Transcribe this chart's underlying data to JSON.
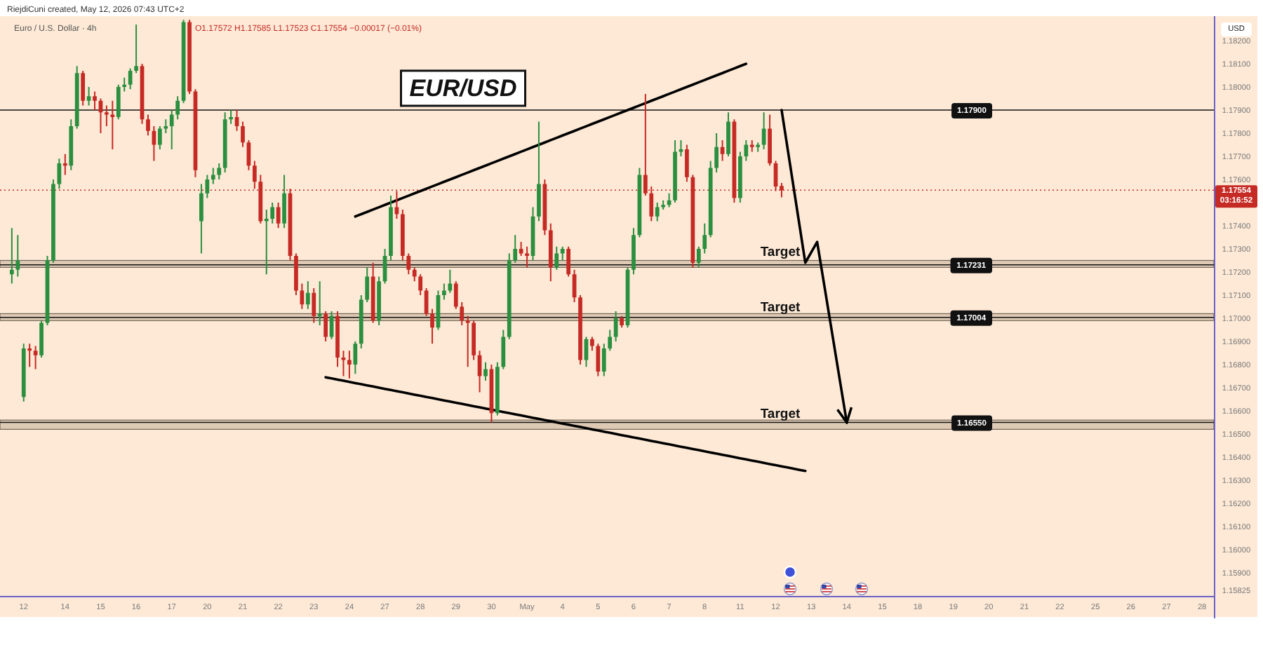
{
  "chart_data": {
    "type": "candlestick",
    "title": "EUR/USD",
    "subtitle": "Euro / U.S. Dollar · 4h",
    "ylabel": "USD",
    "categories": [
      null,
      null,
      "12",
      null,
      null,
      null,
      null,
      null,
      null,
      "14",
      null,
      null,
      null,
      null,
      null,
      "15",
      null,
      null,
      null,
      null,
      null,
      "16",
      null,
      null,
      null,
      null,
      null,
      "17",
      null,
      null,
      null,
      null,
      null,
      "20",
      null,
      null,
      null,
      null,
      null,
      "21",
      null,
      null,
      null,
      null,
      null,
      "22",
      null,
      null,
      null,
      null,
      null,
      "23",
      null,
      null,
      null,
      null,
      null,
      "24",
      null,
      null,
      null,
      null,
      null,
      "27",
      null,
      null,
      null,
      null,
      null,
      "28",
      null,
      null,
      null,
      null,
      null,
      "29",
      null,
      null,
      null,
      null,
      null,
      "30",
      null,
      null,
      null,
      null,
      null,
      "May",
      null,
      null,
      null,
      null,
      null,
      "4",
      null,
      null,
      null,
      null,
      null,
      "5",
      null,
      null,
      null,
      null,
      null,
      "6",
      null,
      null,
      null,
      null,
      null,
      "7",
      null,
      null,
      null,
      null,
      null,
      "8",
      null,
      null,
      null,
      null,
      null,
      "11",
      null,
      null,
      null,
      null,
      null,
      "12",
      null,
      null,
      null,
      null,
      null,
      "13",
      null,
      null,
      null,
      null,
      null,
      "14",
      null,
      null,
      null,
      null,
      null,
      "15",
      null,
      null,
      null,
      null,
      null,
      "18",
      null,
      null,
      null,
      null,
      null,
      "19",
      null,
      null,
      null,
      null,
      null,
      "20",
      null,
      null,
      null,
      null,
      null,
      "21",
      null,
      null,
      null,
      null,
      null,
      "22",
      null,
      null,
      null,
      null,
      null,
      "25",
      null,
      null,
      null,
      null,
      null,
      "26",
      null,
      null,
      null,
      null,
      null,
      "27",
      null,
      null,
      null,
      null,
      null,
      "28"
    ],
    "ohlc": [
      [
        1.1719,
        1.1739,
        1.1715,
        1.1721
      ],
      [
        1.1721,
        1.1736,
        1.1718,
        1.1725
      ],
      [
        1.1666,
        1.1689,
        1.1664,
        1.1687
      ],
      [
        1.1687,
        1.1689,
        1.1679,
        1.1686
      ],
      [
        1.1686,
        1.1688,
        1.1678,
        1.1684
      ],
      [
        1.1684,
        1.1699,
        1.1683,
        1.1698
      ],
      [
        1.1698,
        1.1727,
        1.1697,
        1.1725
      ],
      [
        1.1725,
        1.176,
        1.1724,
        1.1758
      ],
      [
        1.1758,
        1.1769,
        1.1756,
        1.1767
      ],
      [
        1.1767,
        1.1771,
        1.1762,
        1.1766
      ],
      [
        1.1766,
        1.1786,
        1.1764,
        1.1783
      ],
      [
        1.1783,
        1.1809,
        1.1782,
        1.1806
      ],
      [
        1.1806,
        1.1807,
        1.1792,
        1.1794
      ],
      [
        1.1794,
        1.18,
        1.1792,
        1.1796
      ],
      [
        1.1796,
        1.1798,
        1.179,
        1.1794
      ],
      [
        1.1794,
        1.1795,
        1.178,
        1.1789
      ],
      [
        1.1789,
        1.1792,
        1.1783,
        1.1788
      ],
      [
        1.1788,
        1.1794,
        1.1773,
        1.1787
      ],
      [
        1.1787,
        1.1801,
        1.1786,
        1.18
      ],
      [
        1.18,
        1.1804,
        1.1798,
        1.1801
      ],
      [
        1.1801,
        1.1808,
        1.1799,
        1.1807
      ],
      [
        1.1807,
        1.1827,
        1.1806,
        1.1809
      ],
      [
        1.1809,
        1.181,
        1.1784,
        1.1786
      ],
      [
        1.1786,
        1.1788,
        1.1779,
        1.1781
      ],
      [
        1.1781,
        1.1783,
        1.1768,
        1.1775
      ],
      [
        1.1775,
        1.1783,
        1.1773,
        1.1782
      ],
      [
        1.1782,
        1.1786,
        1.178,
        1.1783
      ],
      [
        1.1783,
        1.179,
        1.1773,
        1.1788
      ],
      [
        1.1788,
        1.1796,
        1.1786,
        1.1794
      ],
      [
        1.1794,
        1.1829,
        1.1793,
        1.1828
      ],
      [
        1.1828,
        1.1829,
        1.1797,
        1.1798
      ],
      [
        1.1798,
        1.1799,
        1.1761,
        1.1764
      ],
      [
        1.1742,
        1.1758,
        1.1728,
        1.1754
      ],
      [
        1.1754,
        1.1762,
        1.1752,
        1.176
      ],
      [
        1.176,
        1.1765,
        1.1758,
        1.1762
      ],
      [
        1.1762,
        1.1767,
        1.176,
        1.1765
      ],
      [
        1.1765,
        1.1789,
        1.1763,
        1.1786
      ],
      [
        1.1786,
        1.179,
        1.1784,
        1.1787
      ],
      [
        1.1787,
        1.179,
        1.1781,
        1.1783
      ],
      [
        1.1783,
        1.1785,
        1.1774,
        1.1776
      ],
      [
        1.1776,
        1.1777,
        1.1764,
        1.1766
      ],
      [
        1.1766,
        1.1768,
        1.1756,
        1.1759
      ],
      [
        1.1759,
        1.1762,
        1.1741,
        1.1742
      ],
      [
        1.1742,
        1.1747,
        1.1719,
        1.1743
      ],
      [
        1.1743,
        1.175,
        1.1741,
        1.1748
      ],
      [
        1.1748,
        1.175,
        1.1739,
        1.1741
      ],
      [
        1.1741,
        1.1762,
        1.1739,
        1.1754
      ],
      [
        1.1754,
        1.1756,
        1.1725,
        1.1727
      ],
      [
        1.1727,
        1.1728,
        1.171,
        1.1712
      ],
      [
        1.1712,
        1.1715,
        1.1704,
        1.1706
      ],
      [
        1.1706,
        1.1716,
        1.1704,
        1.1711
      ],
      [
        1.1711,
        1.1713,
        1.1698,
        1.1701
      ],
      [
        1.1701,
        1.1716,
        1.1697,
        1.1702
      ],
      [
        1.1702,
        1.1703,
        1.169,
        1.1692
      ],
      [
        1.1692,
        1.1703,
        1.1691,
        1.1701
      ],
      [
        1.1701,
        1.1703,
        1.1679,
        1.1683
      ],
      [
        1.1683,
        1.1686,
        1.1675,
        1.1682
      ],
      [
        1.1682,
        1.1686,
        1.1674,
        1.168
      ],
      [
        1.168,
        1.169,
        1.1676,
        1.1689
      ],
      [
        1.1689,
        1.171,
        1.1687,
        1.1708
      ],
      [
        1.1708,
        1.1722,
        1.1707,
        1.1718
      ],
      [
        1.1718,
        1.1724,
        1.1698,
        1.1699
      ],
      [
        1.1699,
        1.1718,
        1.1697,
        1.1716
      ],
      [
        1.1716,
        1.173,
        1.1715,
        1.1727
      ],
      [
        1.1727,
        1.1753,
        1.1725,
        1.1748
      ],
      [
        1.1748,
        1.1755,
        1.1743,
        1.1745
      ],
      [
        1.1745,
        1.1747,
        1.1725,
        1.1727
      ],
      [
        1.1727,
        1.1728,
        1.1719,
        1.1721
      ],
      [
        1.1721,
        1.1722,
        1.1716,
        1.1718
      ],
      [
        1.1718,
        1.1719,
        1.171,
        1.1712
      ],
      [
        1.1712,
        1.1713,
        1.1701,
        1.1702
      ],
      [
        1.1702,
        1.1704,
        1.1689,
        1.1696
      ],
      [
        1.1696,
        1.1712,
        1.1695,
        1.171
      ],
      [
        1.171,
        1.1715,
        1.1708,
        1.1712
      ],
      [
        1.1712,
        1.1721,
        1.1711,
        1.1715
      ],
      [
        1.1715,
        1.1716,
        1.1704,
        1.1705
      ],
      [
        1.1705,
        1.1707,
        1.1697,
        1.1699
      ],
      [
        1.1699,
        1.1701,
        1.1679,
        1.1698
      ],
      [
        1.1698,
        1.1699,
        1.1682,
        1.1684
      ],
      [
        1.1684,
        1.1686,
        1.1668,
        1.1675
      ],
      [
        1.1675,
        1.1681,
        1.1673,
        1.1678
      ],
      [
        1.1678,
        1.168,
        1.1655,
        1.1659
      ],
      [
        1.1659,
        1.1681,
        1.1658,
        1.1679
      ],
      [
        1.1679,
        1.1695,
        1.1678,
        1.1692
      ],
      [
        1.1692,
        1.1728,
        1.1691,
        1.1725
      ],
      [
        1.1725,
        1.1736,
        1.1724,
        1.173
      ],
      [
        1.173,
        1.1733,
        1.1727,
        1.1728
      ],
      [
        1.1728,
        1.1731,
        1.1722,
        1.1727
      ],
      [
        1.1727,
        1.1748,
        1.1725,
        1.1744
      ],
      [
        1.1744,
        1.1785,
        1.1742,
        1.1758
      ],
      [
        1.1758,
        1.176,
        1.1736,
        1.1738
      ],
      [
        1.1738,
        1.1741,
        1.1716,
        1.1722
      ],
      [
        1.1722,
        1.1731,
        1.1721,
        1.1728
      ],
      [
        1.1728,
        1.1731,
        1.1725,
        1.173
      ],
      [
        1.173,
        1.1731,
        1.1718,
        1.1719
      ],
      [
        1.1719,
        1.1721,
        1.1707,
        1.1709
      ],
      [
        1.1709,
        1.171,
        1.168,
        1.1682
      ],
      [
        1.1682,
        1.1692,
        1.1679,
        1.1691
      ],
      [
        1.1691,
        1.1692,
        1.1686,
        1.1688
      ],
      [
        1.1688,
        1.1689,
        1.1675,
        1.1677
      ],
      [
        1.1677,
        1.1689,
        1.1675,
        1.1687
      ],
      [
        1.1687,
        1.1695,
        1.1686,
        1.1692
      ],
      [
        1.1692,
        1.1703,
        1.169,
        1.17
      ],
      [
        1.17,
        1.1701,
        1.1696,
        1.1697
      ],
      [
        1.1697,
        1.1722,
        1.1696,
        1.1721
      ],
      [
        1.1721,
        1.1739,
        1.1719,
        1.1736
      ],
      [
        1.1736,
        1.1765,
        1.1735,
        1.1762
      ],
      [
        1.1762,
        1.1797,
        1.1753,
        1.1754
      ],
      [
        1.1754,
        1.1757,
        1.1742,
        1.1744
      ],
      [
        1.1744,
        1.175,
        1.1742,
        1.1748
      ],
      [
        1.1748,
        1.1751,
        1.1747,
        1.1749
      ],
      [
        1.1749,
        1.1754,
        1.1748,
        1.1751
      ],
      [
        1.1751,
        1.1777,
        1.175,
        1.1772
      ],
      [
        1.1772,
        1.1777,
        1.177,
        1.1773
      ],
      [
        1.1773,
        1.1775,
        1.1759,
        1.1761
      ],
      [
        1.1761,
        1.1762,
        1.1722,
        1.1724
      ],
      [
        1.1724,
        1.1731,
        1.1722,
        1.173
      ],
      [
        1.173,
        1.1741,
        1.1728,
        1.1736
      ],
      [
        1.1736,
        1.1768,
        1.1735,
        1.1765
      ],
      [
        1.1765,
        1.178,
        1.1763,
        1.1774
      ],
      [
        1.1774,
        1.1777,
        1.1768,
        1.1771
      ],
      [
        1.1771,
        1.1789,
        1.177,
        1.1785
      ],
      [
        1.1785,
        1.1786,
        1.175,
        1.1752
      ],
      [
        1.1752,
        1.1772,
        1.175,
        1.177
      ],
      [
        1.177,
        1.1777,
        1.1768,
        1.1775
      ],
      [
        1.1775,
        1.1777,
        1.1772,
        1.1774
      ],
      [
        1.1774,
        1.1776,
        1.1772,
        1.1775
      ],
      [
        1.1775,
        1.1789,
        1.1773,
        1.1782
      ],
      [
        1.1782,
        1.1788,
        1.1766,
        1.1767
      ],
      [
        1.1767,
        1.1768,
        1.1755,
        1.1757
      ],
      [
        1.17572,
        1.17585,
        1.17523,
        1.17554
      ],
      null,
      null,
      null,
      null,
      null,
      null,
      null,
      null,
      null,
      null,
      null,
      null,
      null,
      null,
      null,
      null,
      null,
      null,
      null,
      null,
      null,
      null,
      null,
      null,
      null,
      null,
      null,
      null,
      null,
      null,
      null,
      null,
      null,
      null,
      null,
      null,
      null,
      null,
      null,
      null,
      null,
      null,
      null,
      null,
      null,
      null,
      null,
      null,
      null,
      null,
      null,
      null,
      null,
      null,
      null,
      null,
      null,
      null,
      null,
      null,
      null,
      null,
      null,
      null,
      null,
      null,
      null,
      null,
      null,
      null,
      null
    ],
    "colors": [
      "#2a8f3f",
      "#2a8f3f",
      "#2a8f3f",
      "#c62a24",
      "#c62a24",
      "#2a8f3f",
      "#2a8f3f",
      "#2a8f3f",
      "#2a8f3f",
      "#c62a24",
      "#2a8f3f",
      "#2a8f3f",
      "#c62a24",
      "#2a8f3f",
      "#c62a24",
      "#c62a24",
      "#c62a24",
      "#c62a24",
      "#2a8f3f",
      "#2a8f3f",
      "#2a8f3f",
      "#2a8f3f",
      "#c62a24",
      "#c62a24",
      "#c62a24",
      "#2a8f3f",
      "#2a8f3f",
      "#2a8f3f",
      "#2a8f3f",
      "#2a8f3f",
      "#c62a24",
      "#c62a24",
      "#2a8f3f",
      "#2a8f3f",
      "#2a8f3f",
      "#2a8f3f",
      "#2a8f3f",
      "#2a8f3f",
      "#c62a24",
      "#c62a24",
      "#c62a24",
      "#c62a24",
      "#c62a24",
      "#2a8f3f",
      "#2a8f3f",
      "#c62a24",
      "#2a8f3f",
      "#c62a24",
      "#c62a24",
      "#c62a24",
      "#2a8f3f",
      "#c62a24",
      "#2a8f3f",
      "#c62a24",
      "#2a8f3f",
      "#c62a24",
      "#c62a24",
      "#c62a24",
      "#2a8f3f",
      "#2a8f3f",
      "#2a8f3f",
      "#c62a24",
      "#2a8f3f",
      "#2a8f3f",
      "#2a8f3f",
      "#c62a24",
      "#c62a24",
      "#c62a24",
      "#c62a24",
      "#c62a24",
      "#c62a24",
      "#c62a24",
      "#2a8f3f",
      "#2a8f3f",
      "#2a8f3f",
      "#c62a24",
      "#c62a24",
      "#c62a24",
      "#c62a24",
      "#c62a24",
      "#2a8f3f",
      "#c62a24",
      "#2a8f3f",
      "#2a8f3f",
      "#2a8f3f",
      "#2a8f3f",
      "#c62a24",
      "#c62a24",
      "#2a8f3f",
      "#2a8f3f",
      "#c62a24",
      "#c62a24",
      "#2a8f3f",
      "#2a8f3f",
      "#c62a24",
      "#c62a24",
      "#c62a24",
      "#2a8f3f",
      "#c62a24",
      "#c62a24",
      "#2a8f3f",
      "#2a8f3f",
      "#2a8f3f",
      "#c62a24",
      "#2a8f3f",
      "#2a8f3f",
      "#2a8f3f",
      "#c62a24",
      "#c62a24",
      "#2a8f3f",
      "#2a8f3f",
      "#2a8f3f",
      "#2a8f3f",
      "#2a8f3f",
      "#c62a24",
      "#c62a24",
      "#2a8f3f",
      "#2a8f3f",
      "#2a8f3f",
      "#2a8f3f",
      "#c62a24",
      "#2a8f3f",
      "#c62a24",
      "#2a8f3f",
      "#2a8f3f",
      "#c62a24",
      "#2a8f3f",
      "#2a8f3f",
      "#c62a24",
      "#c62a24",
      "#c62a24",
      null,
      null,
      null,
      null,
      null,
      null,
      null,
      null,
      null,
      null,
      null,
      null,
      null,
      null,
      null,
      null,
      null,
      null,
      null,
      null,
      null,
      null,
      null,
      null,
      null,
      null,
      null,
      null,
      null,
      null,
      null,
      null,
      null,
      null,
      null,
      null,
      null,
      null,
      null,
      null,
      null,
      null,
      null,
      null,
      null,
      null,
      null,
      null,
      null,
      null,
      null,
      null,
      null,
      null,
      null,
      null,
      null,
      null,
      null,
      null,
      null,
      null,
      null,
      null,
      null,
      null,
      null,
      null,
      null,
      null,
      null
    ],
    "ylim": [
      1.158,
      1.183
    ],
    "yticks": [
      1.15825,
      {
        "value": 1.159,
        "label": "1.15900"
      },
      {
        "value": 1.16,
        "label": "1.16000"
      },
      {
        "value": 1.161,
        "label": "1.16100"
      },
      {
        "value": 1.162,
        "label": "1.16200"
      },
      {
        "value": 1.163,
        "label": "1.16300"
      },
      {
        "value": 1.164,
        "label": "1.16400"
      },
      {
        "value": 1.165,
        "label": "1.16500"
      },
      {
        "value": 1.166,
        "label": "1.16600"
      },
      {
        "value": 1.167,
        "label": "1.16700"
      },
      {
        "value": 1.168,
        "label": "1.16800"
      },
      {
        "value": 1.169,
        "label": "1.16900"
      },
      {
        "value": 1.17,
        "label": "1.17000"
      },
      {
        "value": 1.171,
        "label": "1.17100"
      },
      {
        "value": 1.172,
        "label": "1.17200"
      },
      {
        "value": 1.173,
        "label": "1.17300"
      },
      {
        "value": 1.174,
        "label": "1.17400"
      },
      {
        "value": 1.176,
        "label": "1.17600"
      },
      {
        "value": 1.177,
        "label": "1.17700"
      },
      {
        "value": 1.178,
        "label": "1.17800"
      },
      {
        "value": 1.179,
        "label": "1.17900"
      },
      {
        "value": 1.18,
        "label": "1.18000"
      },
      {
        "value": 1.181,
        "label": "1.18100"
      },
      {
        "value": 1.182,
        "label": "1.18200"
      }
    ],
    "series": [
      {
        "type": "line",
        "color": "#000000",
        "values": [
          null,
          null,
          null,
          null,
          null,
          null,
          null,
          null,
          null,
          null,
          null,
          null,
          null,
          null,
          null,
          null,
          null,
          null,
          null,
          null,
          null,
          null,
          null,
          null,
          null,
          null,
          null,
          null,
          null,
          null,
          null,
          null,
          null,
          null,
          null,
          null,
          null,
          null,
          null,
          null,
          null,
          null,
          null,
          null,
          null,
          null,
          null,
          null,
          null,
          null,
          null,
          null,
          null,
          null,
          null,
          null,
          null,
          null,
          1.1744,
          1.1745,
          1.1746,
          1.1747,
          1.1748,
          1.1749,
          1.175,
          1.1751,
          1.1752,
          1.1753,
          1.1754,
          1.1755,
          1.1756,
          1.1757,
          1.1758,
          1.1759,
          1.176,
          1.1761,
          1.1762,
          1.1763,
          1.1764,
          1.1765,
          1.1766,
          1.1767,
          1.1768,
          1.1769,
          1.177,
          1.1771,
          1.1772,
          1.1773,
          1.1774,
          1.1775,
          1.1776,
          1.1777,
          1.1778,
          1.1779,
          1.178,
          1.1781,
          1.1782,
          1.1783,
          1.1784,
          1.1785,
          1.1786,
          1.1787,
          1.1788,
          1.1789,
          1.179,
          1.1791,
          1.1792,
          1.1793,
          1.1794,
          1.1795,
          1.1796,
          1.1797,
          1.1798,
          1.1799,
          1.18,
          1.1801,
          1.1802,
          1.1803,
          1.1804,
          1.1805,
          1.1806,
          1.1807,
          1.1808,
          1.1809,
          1.181,
          null,
          null,
          null,
          null,
          null,
          null,
          null,
          null,
          null,
          null,
          null,
          null,
          null,
          null,
          null,
          null,
          null,
          null,
          null,
          null,
          null,
          null,
          null,
          null,
          null,
          null,
          null,
          null,
          null,
          null,
          null,
          null,
          null,
          null,
          null,
          null,
          null,
          null,
          null,
          null,
          null,
          null,
          null,
          null,
          null,
          null,
          null,
          null,
          null,
          null,
          null,
          null,
          null,
          null,
          null,
          null,
          null,
          null,
          null,
          null,
          null,
          null,
          null,
          null,
          null,
          null,
          null,
          null,
          null,
          null,
          null,
          null,
          null,
          null,
          null,
          null,
          null
        ]
      },
      {
        "type": "line",
        "color": "#000000",
        "values": [
          null,
          null,
          null,
          null,
          null,
          null,
          null,
          null,
          null,
          null,
          null,
          null,
          null,
          null,
          null,
          null,
          null,
          null,
          null,
          null,
          null,
          null,
          null,
          null,
          null,
          null,
          null,
          null,
          null,
          null,
          null,
          null,
          null,
          null,
          null,
          null,
          null,
          null,
          null,
          null,
          null,
          null,
          null,
          null,
          null,
          null,
          null,
          null,
          null,
          null,
          null,
          null,
          null,
          1.16745,
          1.1674,
          1.16735,
          1.1673,
          1.16725,
          1.1672,
          1.16715,
          1.1671,
          1.16705,
          1.167,
          1.16695,
          1.1669,
          1.16685,
          1.1668,
          1.16675,
          1.1667,
          1.16665,
          1.1666,
          1.16655,
          1.1665,
          1.16645,
          1.1664,
          1.16635,
          1.1663,
          1.16625,
          1.1662,
          1.16615,
          1.1661,
          1.16605,
          1.166,
          1.16595,
          1.1659,
          1.16585,
          1.1658,
          1.16575,
          1.1657,
          1.16565,
          1.1656,
          1.16555,
          1.1655,
          1.16545,
          1.1654,
          1.16535,
          1.1653,
          1.16525,
          1.1652,
          1.16515,
          1.1651,
          1.16505,
          1.165,
          1.16495,
          1.1649,
          1.16485,
          1.1648,
          1.16475,
          1.1647,
          1.16465,
          1.1646,
          1.16455,
          1.1645,
          1.16445,
          1.1644,
          1.16435,
          1.1643,
          1.16425,
          1.1642,
          1.16415,
          1.1641,
          1.16405,
          1.164,
          1.16395,
          1.1639,
          1.16385,
          1.1638,
          1.16375,
          1.1637,
          1.16365,
          1.1636,
          1.16355,
          1.1635,
          1.16345,
          1.1634,
          null,
          null,
          null,
          null,
          null,
          null,
          null,
          null,
          null,
          null,
          null,
          null,
          null,
          null,
          null,
          null,
          null,
          null,
          null,
          null,
          null,
          null,
          null,
          null,
          null,
          null,
          null,
          null,
          null,
          null,
          null,
          null,
          null,
          null,
          null,
          null,
          null,
          null,
          null,
          null,
          null,
          null,
          null,
          null,
          null,
          null,
          null,
          null,
          null,
          null,
          null,
          null,
          null,
          null,
          null,
          null,
          null,
          null,
          null,
          null,
          null,
          null,
          null,
          null,
          null,
          null,
          null
        ]
      },
      {
        "type": "line",
        "color": "#000000",
        "values": [
          null,
          null,
          null,
          null,
          null,
          null,
          null,
          null,
          null,
          null,
          null,
          null,
          null,
          null,
          null,
          null,
          null,
          null,
          null,
          null,
          null,
          null,
          null,
          null,
          null,
          null,
          null,
          null,
          null,
          null,
          null,
          null,
          null,
          null,
          null,
          null,
          null,
          null,
          null,
          null,
          null,
          null,
          null,
          null,
          null,
          null,
          null,
          null,
          null,
          null,
          null,
          null,
          null,
          null,
          null,
          null,
          null,
          null,
          null,
          null,
          null,
          null,
          null,
          null,
          null,
          null,
          null,
          null,
          null,
          null,
          null,
          null,
          null,
          null,
          null,
          null,
          null,
          null,
          null,
          null,
          null,
          null,
          null,
          null,
          null,
          null,
          null,
          null,
          null,
          null,
          null,
          null,
          null,
          null,
          null,
          null,
          null,
          null,
          null,
          null,
          null,
          null,
          null,
          null,
          null,
          null,
          null,
          null,
          null,
          null,
          null,
          null,
          null,
          null,
          null,
          null,
          null,
          null,
          null,
          null,
          null,
          null,
          null,
          null,
          null,
          null,
          null,
          null,
          null,
          null,
          1.179,
          1.17735,
          1.1757,
          1.17405,
          1.1724,
          1.17285,
          1.1733,
          1.17174,
          1.17018,
          1.16862,
          1.16706,
          1.1655,
          null,
          null,
          null,
          null,
          null,
          null,
          null,
          null,
          null,
          null,
          null,
          null,
          null,
          null,
          null,
          null,
          null,
          null,
          null,
          null,
          null,
          null,
          null,
          null,
          null,
          null,
          null,
          null,
          null,
          null,
          null,
          null,
          null,
          null,
          null,
          null,
          null,
          null,
          null,
          null,
          null,
          null,
          null,
          null,
          null,
          null,
          null,
          null,
          null,
          null,
          null,
          null,
          null,
          null,
          null,
          null,
          null,
          null,
          null,
          null
        ]
      }
    ],
    "ref_lines": [
      {
        "axis": "y",
        "value": 1.17554,
        "label": "1.17554\n03:16:52",
        "color": "#c62a24",
        "line_style": "dotted"
      },
      {
        "axis": "y",
        "value": 1.179,
        "label": "1.17900",
        "color": "#111111"
      },
      {
        "axis": "y",
        "value": 1.17231,
        "label": "1.17231",
        "color": "#111111"
      },
      {
        "axis": "y",
        "value": 1.17004,
        "label": "1.17004",
        "color": "#111111"
      },
      {
        "axis": "y",
        "value": 1.1655,
        "label": "1.16550",
        "color": "#111111"
      }
    ],
    "bands": [
      {
        "axis": "y",
        "from": 1.1722,
        "to": 1.1725,
        "color": "#c9b59c"
      },
      {
        "axis": "y",
        "from": 1.1699,
        "to": 1.1702,
        "color": "#c9b59c"
      },
      {
        "axis": "y",
        "from": 1.1652,
        "to": 1.1656,
        "color": "#c9b59c"
      }
    ],
    "annotations": [
      "RiejdiCuni created, May 12, 2026 07:43 UTC+2",
      "O1.17572 H1.17585 L1.17523 C1.17554 −0.00017 (−0.01%)",
      {
        "text": "Target",
        "y": 1.1727
      },
      {
        "text": "Target",
        "y": 1.1703
      },
      {
        "text": "Target",
        "y": 1.1657
      }
    ]
  }
}
